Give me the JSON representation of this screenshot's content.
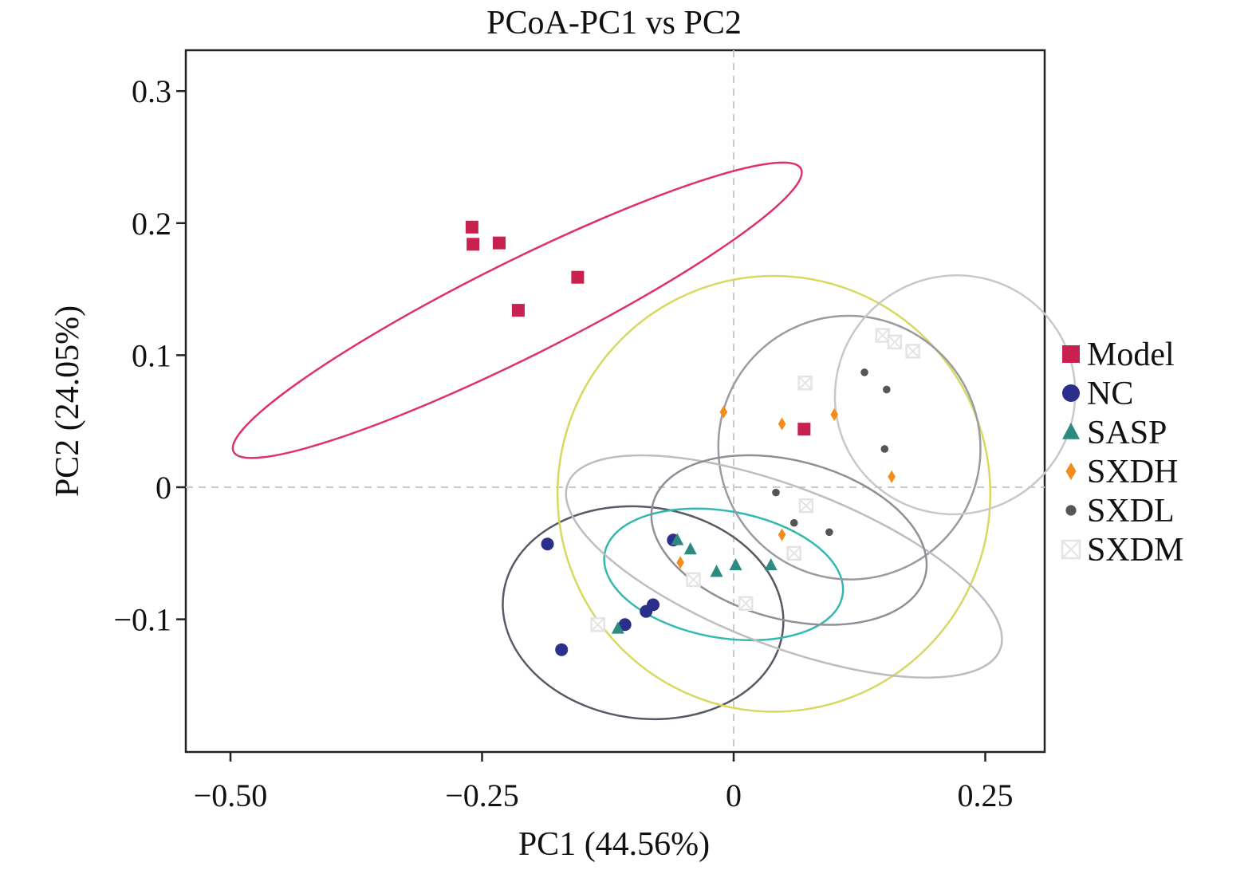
{
  "chart_data": {
    "type": "scatter",
    "title": "PCoA-PC1 vs PC2",
    "xlabel": "PC1 (44.56%)",
    "ylabel": "PC2 (24.05%)",
    "xlim": [
      -0.55,
      0.31
    ],
    "ylim": [
      -0.2,
      0.33
    ],
    "xticks": [
      -0.5,
      -0.25,
      0,
      0.25
    ],
    "xtick_labels": [
      "−0.50",
      "−0.25",
      "0",
      "0.25"
    ],
    "yticks": [
      -0.1,
      0,
      0.1,
      0.2,
      0.3
    ],
    "ytick_labels": [
      "−0.1",
      "0",
      "0.1",
      "0.2",
      "0.3"
    ],
    "grid": false,
    "zero_lines": true,
    "legend_position": "right",
    "series": [
      {
        "name": "Model",
        "color": "#c8204f",
        "marker": "square",
        "points": [
          [
            -0.26,
            0.197
          ],
          [
            -0.259,
            0.184
          ],
          [
            -0.233,
            0.185
          ],
          [
            -0.155,
            0.159
          ],
          [
            -0.214,
            0.134
          ],
          [
            0.07,
            0.044
          ]
        ],
        "ellipse": {
          "cx": -0.215,
          "cy": 0.134,
          "rx": 0.315,
          "ry": 0.036,
          "angle": -26.5,
          "color": "#e0306a"
        }
      },
      {
        "name": "NC",
        "color": "#2a2f8a",
        "marker": "circle",
        "points": [
          [
            -0.185,
            -0.043
          ],
          [
            -0.06,
            -0.04
          ],
          [
            -0.087,
            -0.094
          ],
          [
            -0.08,
            -0.089
          ],
          [
            -0.108,
            -0.104
          ],
          [
            -0.171,
            -0.123
          ]
        ],
        "ellipse": {
          "cx": -0.09,
          "cy": -0.095,
          "rx": 0.14,
          "ry": 0.08,
          "angle": 8,
          "color": "#555b66"
        }
      },
      {
        "name": "SASP",
        "color": "#2e8a80",
        "marker": "triangle",
        "points": [
          [
            -0.056,
            -0.04
          ],
          [
            -0.043,
            -0.047
          ],
          [
            -0.017,
            -0.064
          ],
          [
            0.002,
            -0.059
          ],
          [
            0.037,
            -0.059
          ],
          [
            -0.115,
            -0.107
          ]
        ],
        "ellipse": {
          "cx": -0.01,
          "cy": -0.066,
          "rx": 0.12,
          "ry": 0.048,
          "angle": 10,
          "color": "#33b8b0"
        }
      },
      {
        "name": "SXDH",
        "color": "#f28c1c",
        "marker": "diamond",
        "points": [
          [
            -0.01,
            0.057
          ],
          [
            0.048,
            0.048
          ],
          [
            0.1,
            0.055
          ],
          [
            -0.053,
            -0.057
          ],
          [
            0.048,
            -0.036
          ],
          [
            0.157,
            0.008
          ]
        ],
        "ellipse": {
          "cx": 0.04,
          "cy": -0.005,
          "rx": 0.215,
          "ry": 0.165,
          "angle": 0,
          "color": "#d8d860"
        }
      },
      {
        "name": "SXDL",
        "color": "#555555",
        "marker": "circle-small",
        "points": [
          [
            0.13,
            0.087
          ],
          [
            0.152,
            0.074
          ],
          [
            0.15,
            0.029
          ],
          [
            0.095,
            -0.034
          ],
          [
            0.06,
            -0.027
          ],
          [
            0.042,
            -0.004
          ]
        ],
        "ellipse": {
          "cx": 0.115,
          "cy": 0.03,
          "rx": 0.13,
          "ry": 0.1,
          "angle": -25,
          "color": "#9a9aa2"
        }
      },
      {
        "name": "SXDM",
        "color": "#e4e4e4",
        "marker": "square-x",
        "points": [
          [
            0.148,
            0.115
          ],
          [
            0.16,
            0.11
          ],
          [
            0.178,
            0.103
          ],
          [
            0.071,
            0.079
          ],
          [
            0.072,
            -0.014
          ],
          [
            0.06,
            -0.05
          ],
          [
            -0.04,
            -0.07
          ],
          [
            0.012,
            -0.088
          ],
          [
            -0.135,
            -0.104
          ]
        ],
        "ellipse": {
          "cx": 0.05,
          "cy": -0.06,
          "rx": 0.23,
          "ry": 0.06,
          "angle": 21,
          "color": "#bdbdbd"
        }
      }
    ],
    "extra_ellipses": [
      {
        "cx": 0.22,
        "cy": 0.07,
        "rx": 0.12,
        "ry": 0.09,
        "angle": -35,
        "color": "#c8c8c8"
      },
      {
        "cx": 0.055,
        "cy": -0.04,
        "rx": 0.14,
        "ry": 0.06,
        "angle": 15,
        "color": "#8f8f99"
      }
    ]
  }
}
